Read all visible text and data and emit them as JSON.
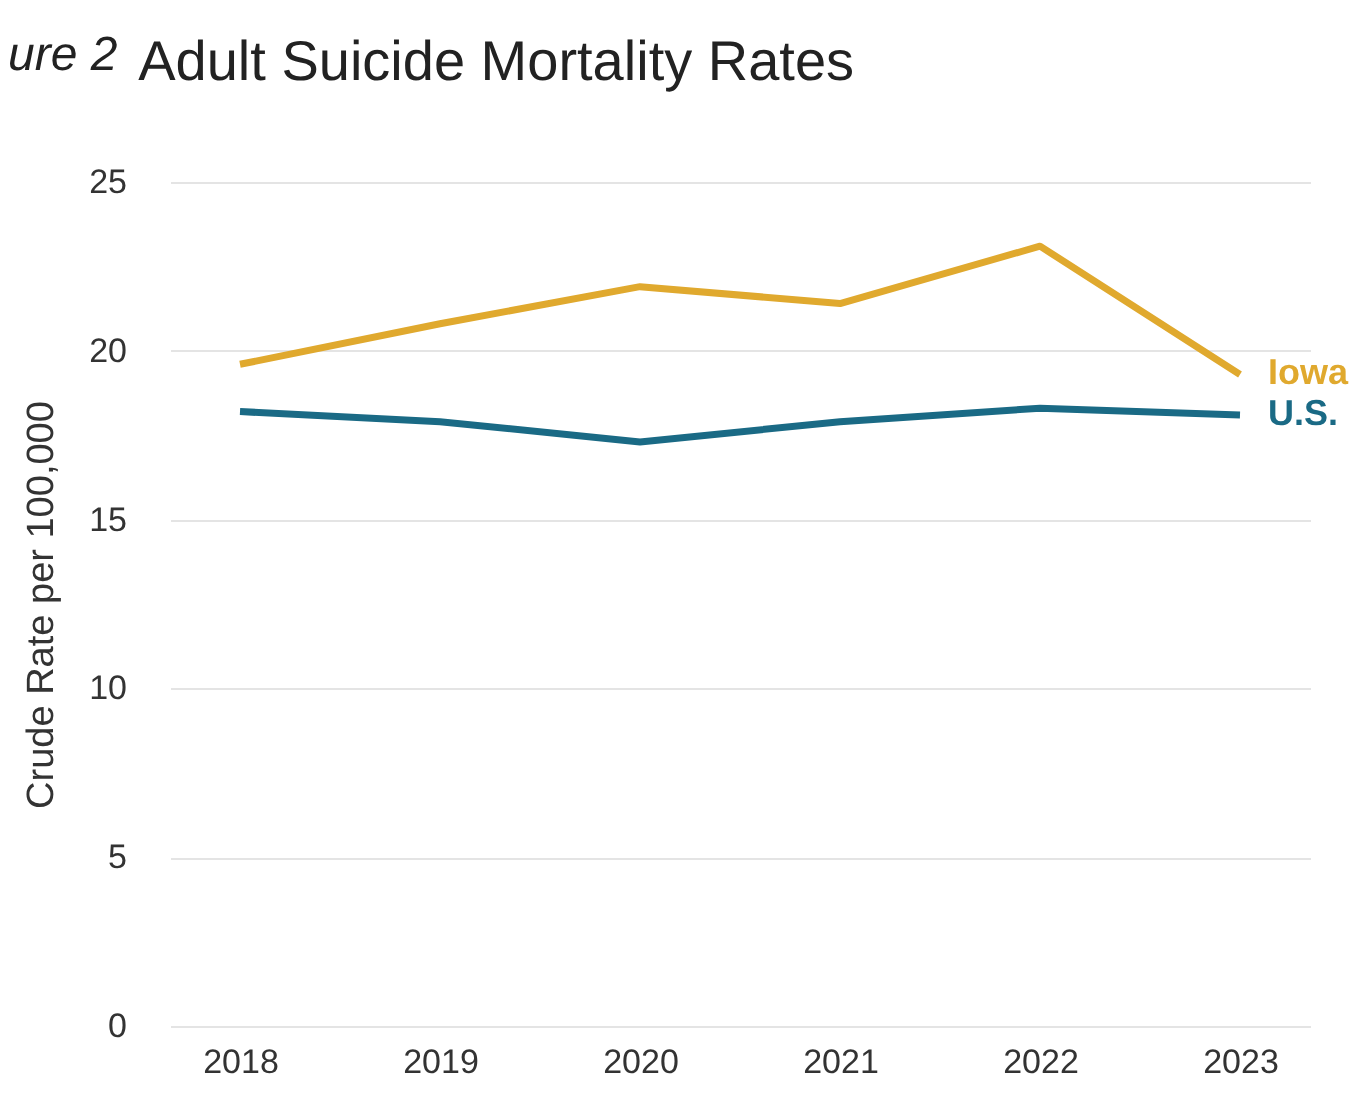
{
  "chart_data": {
    "type": "line",
    "title": "Adult Suicide Mortality Rates",
    "ylabel": "Crude Rate per 100,000",
    "annotations": [
      "ure 2"
    ],
    "categories": [
      "2018",
      "2019",
      "2020",
      "2021",
      "2022",
      "2023"
    ],
    "series": [
      {
        "name": "Iowa",
        "color": "#e0a92e",
        "values": [
          19.6,
          20.8,
          21.9,
          21.4,
          23.1,
          19.3
        ]
      },
      {
        "name": "U.S.",
        "color": "#1a6a85",
        "values": [
          18.2,
          17.9,
          17.3,
          17.9,
          18.3,
          18.1
        ]
      }
    ],
    "ylim": [
      0,
      25
    ],
    "yticks": [
      0,
      5,
      10,
      15,
      20,
      25
    ],
    "grid": "y",
    "legend": false
  }
}
